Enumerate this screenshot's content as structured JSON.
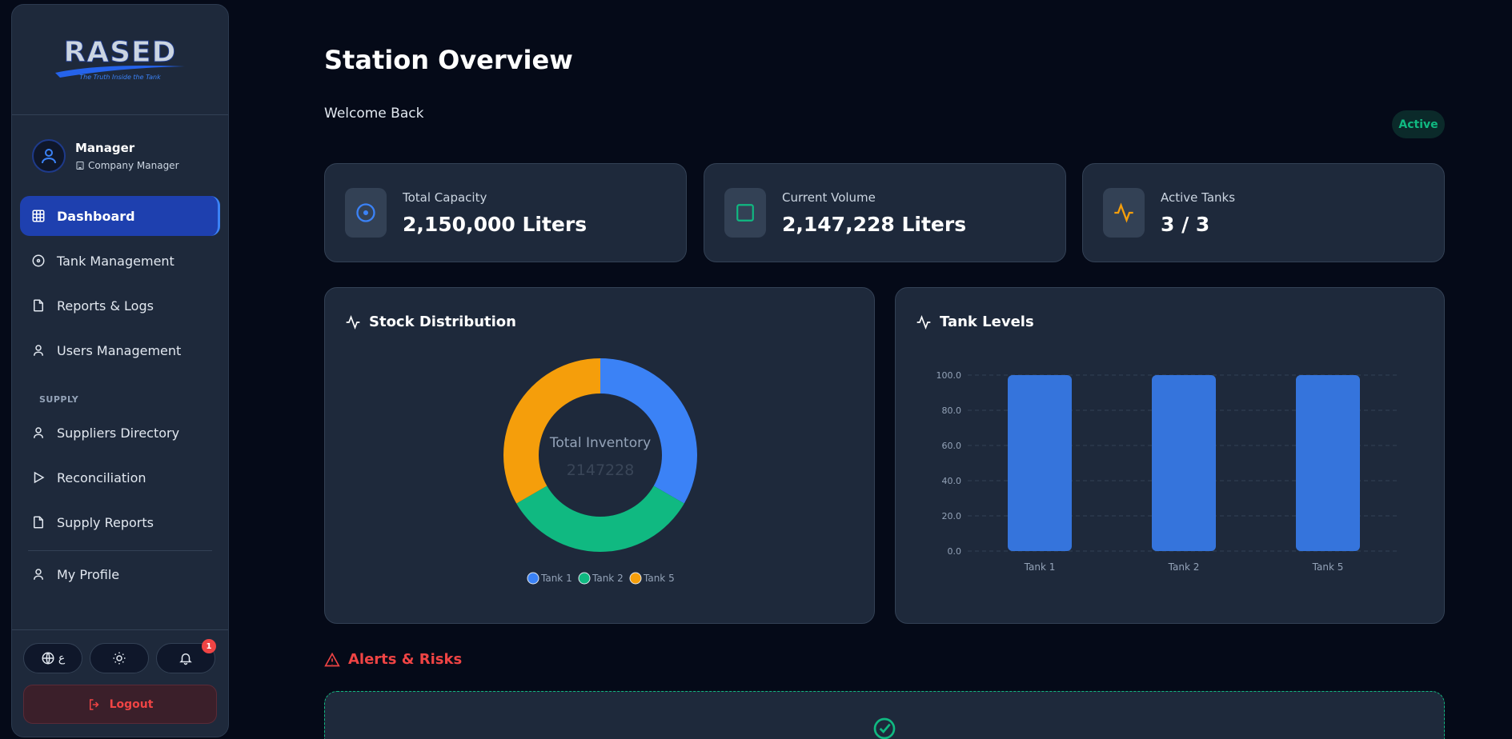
{
  "sidebar": {
    "logo": {
      "text": "RASED",
      "tagline": "The Truth Inside the Tank"
    },
    "user": {
      "name": "Manager",
      "role": "Company Manager"
    },
    "nav_items": [
      {
        "label": "Dashboard",
        "icon": "grid-icon",
        "active": true
      },
      {
        "label": "Tank Management",
        "icon": "target-icon"
      },
      {
        "label": "Reports & Logs",
        "icon": "file-icon"
      },
      {
        "label": "Users Management",
        "icon": "user-icon"
      }
    ],
    "section_label": "SUPPLY",
    "supply_items": [
      {
        "label": "Suppliers Directory",
        "icon": "user-icon"
      },
      {
        "label": "Reconciliation",
        "icon": "play-icon"
      },
      {
        "label": "Supply Reports",
        "icon": "file-icon"
      }
    ],
    "profile_item": {
      "label": "My Profile",
      "icon": "user-icon"
    },
    "language_label": "ع",
    "notification_count": "1",
    "logout_label": "Logout"
  },
  "header": {
    "title": "Station Overview",
    "welcome": "Welcome Back",
    "status": "Active"
  },
  "stats": [
    {
      "label": "Total Capacity",
      "value": "2,150,000 Liters",
      "icon": "target-icon",
      "color": "#3b82f6"
    },
    {
      "label": "Current Volume",
      "value": "2,147,228 Liters",
      "icon": "square-icon",
      "color": "#10b981"
    },
    {
      "label": "Active Tanks",
      "value": "3 / 3",
      "icon": "activity-icon",
      "color": "#f59e0b"
    }
  ],
  "stock_panel": {
    "title": "Stock Distribution",
    "center_label": "Total Inventory",
    "center_value": "2147228"
  },
  "levels_panel": {
    "title": "Tank Levels"
  },
  "alerts": {
    "title": "Alerts & Risks"
  },
  "colors": {
    "blue": "#3b82f6",
    "green": "#10b981",
    "orange": "#f59e0b",
    "bar": "#3574dc",
    "danger": "#ef4444"
  },
  "chart_data": [
    {
      "type": "pie",
      "variant": "donut",
      "categories": [
        "Tank 1",
        "Tank 2",
        "Tank 5"
      ],
      "values": [
        715700,
        715700,
        715828
      ],
      "colors": [
        "#3b82f6",
        "#10b981",
        "#f59e0b"
      ],
      "legend": "bottom"
    },
    {
      "type": "bar",
      "categories": [
        "Tank 1",
        "Tank 2",
        "Tank 5"
      ],
      "values": [
        100,
        100,
        100
      ],
      "ylim": [
        0,
        100
      ],
      "yticks": [
        "0.0",
        "20.0",
        "40.0",
        "60.0",
        "80.0",
        "100.0"
      ],
      "grid": true,
      "color": "#3574dc"
    }
  ]
}
